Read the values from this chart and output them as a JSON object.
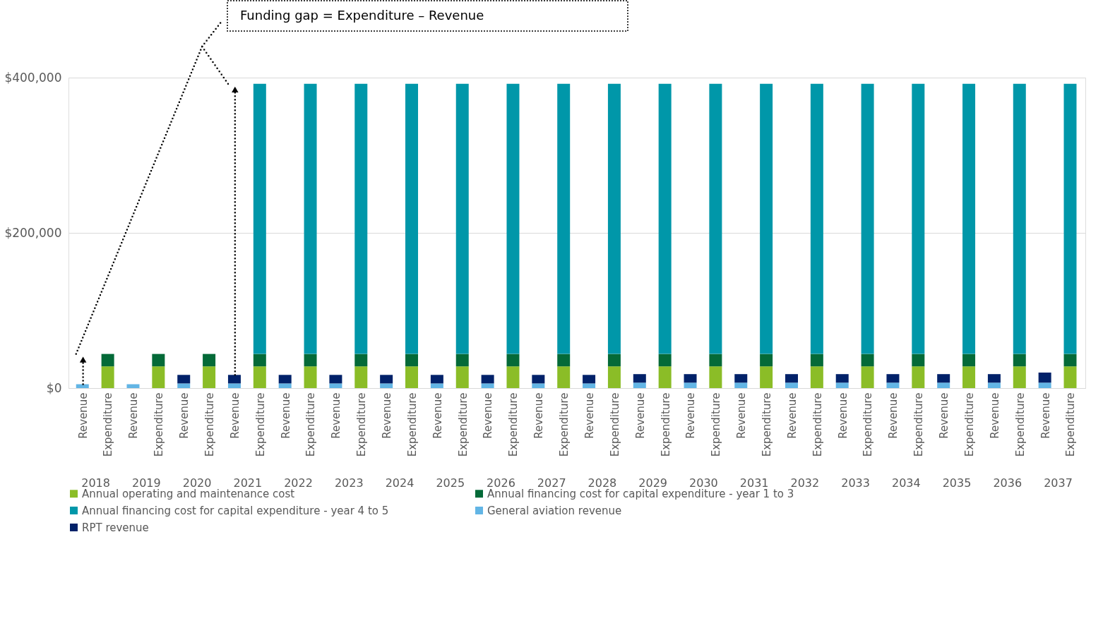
{
  "chart_data": {
    "type": "bar",
    "stacked": true,
    "categories": [
      "Revenue",
      "Expenditure",
      "Revenue",
      "Expenditure",
      "Revenue",
      "Expenditure",
      "Revenue",
      "Expenditure",
      "Revenue",
      "Expenditure",
      "Revenue",
      "Expenditure",
      "Revenue",
      "Expenditure",
      "Revenue",
      "Expenditure",
      "Revenue",
      "Expenditure",
      "Revenue",
      "Expenditure",
      "Revenue",
      "Expenditure",
      "Revenue",
      "Expenditure",
      "Revenue",
      "Expenditure",
      "Revenue",
      "Expenditure",
      "Revenue",
      "Expenditure",
      "Revenue",
      "Expenditure",
      "Revenue",
      "Expenditure",
      "Revenue",
      "Expenditure",
      "Revenue",
      "Expenditure",
      "Revenue",
      "Expenditure"
    ],
    "series": [
      {
        "name": "Annual operating and maintenance cost",
        "color": "#8bbd27",
        "values": [
          null,
          28000,
          null,
          28000,
          null,
          28000,
          null,
          28000,
          null,
          28000,
          null,
          28000,
          null,
          28000,
          null,
          28000,
          null,
          28000,
          null,
          28000,
          null,
          28000,
          null,
          28000,
          null,
          28000,
          null,
          28000,
          null,
          28000,
          null,
          28000,
          null,
          28000,
          null,
          28000,
          null,
          28000,
          null,
          28000
        ]
      },
      {
        "name": "Annual financing cost for capital expenditure - year 1 to 3",
        "color": "#046a38",
        "values": [
          null,
          16000,
          null,
          16000,
          null,
          16000,
          null,
          16000,
          null,
          16000,
          null,
          16000,
          null,
          16000,
          null,
          16000,
          null,
          16000,
          null,
          16000,
          null,
          16000,
          null,
          16000,
          null,
          16000,
          null,
          16000,
          null,
          16000,
          null,
          16000,
          null,
          16000,
          null,
          16000,
          null,
          16000,
          null,
          16000
        ]
      },
      {
        "name": "Annual financing cost for capital expenditure - year 4 to 5",
        "color": "#0097a9",
        "values": [
          null,
          null,
          null,
          null,
          null,
          null,
          null,
          348000,
          null,
          348000,
          null,
          348000,
          null,
          348000,
          null,
          348000,
          null,
          348000,
          null,
          348000,
          null,
          348000,
          null,
          348000,
          null,
          348000,
          null,
          348000,
          null,
          348000,
          null,
          348000,
          null,
          348000,
          null,
          348000,
          null,
          348000,
          null,
          348000
        ]
      },
      {
        "name": "General aviation revenue",
        "color": "#62b5e5",
        "values": [
          5000,
          null,
          5000,
          null,
          6000,
          null,
          6000,
          null,
          6000,
          null,
          6000,
          null,
          6000,
          null,
          6000,
          null,
          6000,
          null,
          6000,
          null,
          6000,
          null,
          7000,
          null,
          7000,
          null,
          7000,
          null,
          7000,
          null,
          7000,
          null,
          7000,
          null,
          7000,
          null,
          7000,
          null,
          7000,
          null
        ]
      },
      {
        "name": "RPT revenue",
        "color": "#012169",
        "values": [
          null,
          null,
          null,
          null,
          11000,
          null,
          11000,
          null,
          11000,
          null,
          11000,
          null,
          11000,
          null,
          11000,
          null,
          11000,
          null,
          11000,
          null,
          11000,
          null,
          11000,
          null,
          11000,
          null,
          11000,
          null,
          11000,
          null,
          11000,
          null,
          11000,
          null,
          11000,
          null,
          11000,
          null,
          13000,
          null
        ]
      }
    ],
    "ylim": [
      0,
      400000
    ],
    "yticks": [
      {
        "value": 0,
        "label": "$0"
      },
      {
        "value": 200000,
        "label": "$200,000"
      },
      {
        "value": 400000,
        "label": "$400,000"
      }
    ],
    "grid": "y",
    "legend": "bottom",
    "annotations": [
      "Funding gap = Expenditure – Revenue",
      "2018",
      "2019",
      "2020",
      "2021",
      "2022",
      "2023",
      "2024",
      "2025",
      "2026",
      "2027",
      "2028",
      "2029",
      "2030",
      "2031",
      "2032",
      "2033",
      "2034",
      "2035",
      "2036",
      "2037"
    ]
  }
}
